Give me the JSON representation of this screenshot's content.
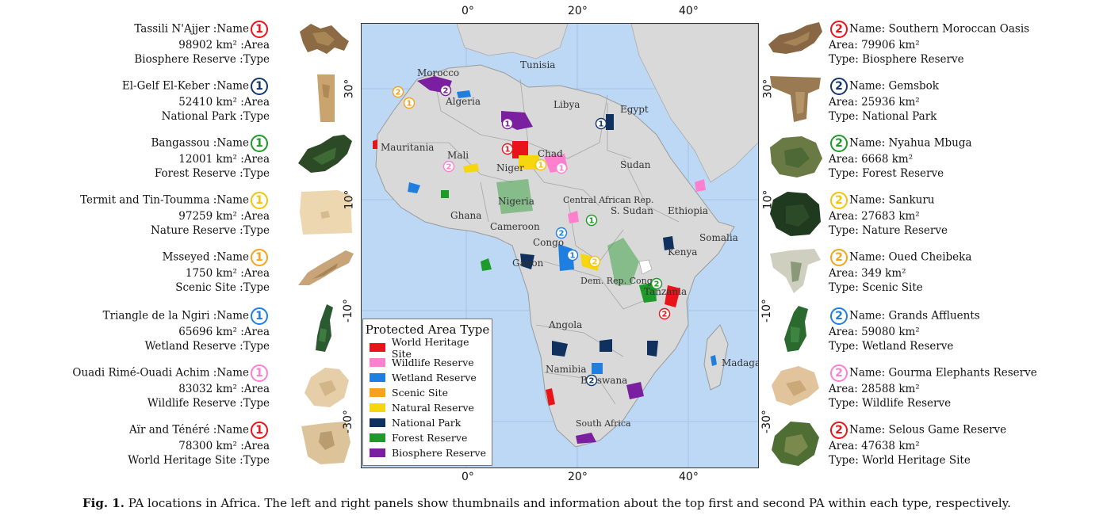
{
  "colors": {
    "world_heritage": "#e8141a",
    "wildlife": "#ff7fcf",
    "wetland": "#1f7fe0",
    "scenic": "#f7a21b",
    "natural": "#f5d60f",
    "national_park": "#10305e",
    "forest": "#1e9a2a",
    "biosphere": "#7a1fa0",
    "rank1_red": "#e8141a",
    "rank1_blue": "#13386e",
    "rank1_green": "#1e9a2a",
    "rank1_yellow": "#f2c40f",
    "rank1_orange": "#f7a21b",
    "rank1_cyan": "#1f7fe0",
    "rank1_pink": "#ff7fcf"
  },
  "left_panel": [
    {
      "name": "Tassili N'Ajjer :Name",
      "area": "98902 km² :Area",
      "type": "Biosphere Reserve :Type",
      "rank": "1",
      "color": "#e8141a"
    },
    {
      "name": "El-Gelf El-Keber :Name",
      "area": "52410 km² :Area",
      "type": "National Park :Type",
      "rank": "1",
      "color": "#13386e"
    },
    {
      "name": "Bangassou :Name",
      "area": "12001 km² :Area",
      "type": "Forest Reserve :Type",
      "rank": "1",
      "color": "#1e9a2a"
    },
    {
      "name": "Termit and Tin-Toumma :Name",
      "area": "97259 km² :Area",
      "type": "Nature Reserve :Type",
      "rank": "1",
      "color": "#f2c40f"
    },
    {
      "name": "Msseyed :Name",
      "area": "1750 km² :Area",
      "type": "Scenic Site :Type",
      "rank": "1",
      "color": "#f7a21b"
    },
    {
      "name": "Triangle de la Ngiri :Name",
      "area": "65696 km² :Area",
      "type": "Wetland Reserve :Type",
      "rank": "1",
      "color": "#1f7fe0"
    },
    {
      "name": "Ouadi Rimé-Ouadi Achim :Name",
      "area": "83032 km² :Area",
      "type": "Wildlife Reserve :Type",
      "rank": "1",
      "color": "#ff7fcf"
    },
    {
      "name": "Aïr and Ténéré :Name",
      "area": "78300 km² :Area",
      "type": "World Heritage Site :Type",
      "rank": "1",
      "color": "#e8141a"
    }
  ],
  "right_panel": [
    {
      "name": "Name: Southern Moroccan Oasis",
      "area": "Area: 79906 km²",
      "type": "Type: Biosphere Reserve",
      "rank": "2",
      "color": "#e8141a"
    },
    {
      "name": "Name: Gemsbok",
      "area": "Area: 25936 km²",
      "type": "Type: National Park",
      "rank": "2",
      "color": "#13386e"
    },
    {
      "name": "Name: Nyahua Mbuga",
      "area": "Area: 6668 km²",
      "type": "Type: Forest Reserve",
      "rank": "2",
      "color": "#1e9a2a"
    },
    {
      "name": "Name: Sankuru",
      "area": "Area: 27683 km²",
      "type": "Type: Nature Reserve",
      "rank": "2",
      "color": "#f2c40f"
    },
    {
      "name": "Name: Oued Cheibeka",
      "area": "Area: 349 km²",
      "type": "Type: Scenic Site",
      "rank": "2",
      "color": "#f7a21b"
    },
    {
      "name": "Name: Grands Affluents",
      "area": "Area: 59080 km²",
      "type": "Type: Wetland Reserve",
      "rank": "2",
      "color": "#1f7fe0"
    },
    {
      "name": "Name: Gourma Elephants Reserve",
      "area": "Area: 28588 km²",
      "type": "Type: Wildlife Reserve",
      "rank": "2",
      "color": "#ff7fcf"
    },
    {
      "name": "Name: Selous Game Reserve",
      "area": "Area: 47638 km²",
      "type": "Type: World Heritage Site",
      "rank": "2",
      "color": "#e8141a"
    }
  ],
  "axes": {
    "top_ticks": [
      "0°",
      "20°",
      "40°"
    ],
    "bottom_ticks": [
      "0°",
      "20°",
      "40°"
    ],
    "left_ticks": [
      "30°",
      "10°",
      "-10°",
      "-30°"
    ],
    "right_ticks": [
      "30°",
      "10°",
      "-10°",
      "-30°"
    ]
  },
  "countries": [
    "Tunisia",
    "Morocco",
    "Algeria",
    "Libya",
    "Egypt",
    "Mauritania",
    "Mali",
    "Niger",
    "Chad",
    "Sudan",
    "Nigeria",
    "Ghana",
    "Central African Rep.",
    "Cameroon",
    "S. Sudan",
    "Ethiopia",
    "Somalia",
    "Congo",
    "Gabon",
    "Kenya",
    "Dem. Rep. Congo",
    "Tanzania",
    "Angola",
    "Namibia",
    "Botswana",
    "South Africa",
    "Madagascar"
  ],
  "legend": {
    "title": "Protected Area Type",
    "items": [
      {
        "label": "World Heritage Site",
        "color": "#e8141a"
      },
      {
        "label": "Wildlife Reserve",
        "color": "#ff7fcf"
      },
      {
        "label": "Wetland Reserve",
        "color": "#1f7fe0"
      },
      {
        "label": "Scenic Site",
        "color": "#f7a21b"
      },
      {
        "label": "Natural Reserve",
        "color": "#f5d60f"
      },
      {
        "label": "National Park",
        "color": "#10305e"
      },
      {
        "label": "Forest Reserve",
        "color": "#1e9a2a"
      },
      {
        "label": "Biosphere Reserve",
        "color": "#7a1fa0"
      }
    ]
  },
  "caption": {
    "label": "Fig. 1.",
    "text": "PA locations in Africa. The left and right panels show thumbnails and information about the top first and second PA within each type, respectively."
  }
}
